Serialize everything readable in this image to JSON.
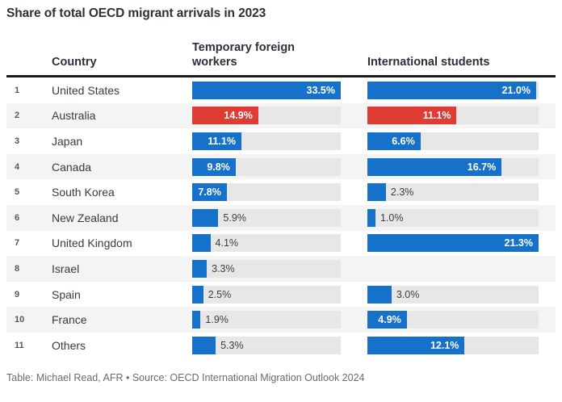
{
  "title": "Share of total OECD migrant arrivals in 2023",
  "columns": {
    "country": "Country",
    "workers": "Temporary foreign\nworkers",
    "students": "International students"
  },
  "footer": "Table: Michael Read, AFR • Source: OECD International Migration Outlook 2024",
  "colors": {
    "bar_blue": "#1571c9",
    "bar_red": "#df3c33",
    "track": "#e7e7e7",
    "stripe": "#f4f4f4",
    "rule": "#1a1a22",
    "title_text": "#2c303a",
    "footer_text": "#6b6b6b"
  },
  "chart_data": {
    "type": "bar",
    "orientation": "horizontal",
    "title": "Share of total OECD migrant arrivals in 2023",
    "ranks": [
      1,
      2,
      3,
      4,
      5,
      6,
      7,
      8,
      9,
      10,
      11
    ],
    "categories": [
      "United States",
      "Australia",
      "Japan",
      "Canada",
      "South Korea",
      "New Zealand",
      "United Kingdom",
      "Israel",
      "Spain",
      "France",
      "Others"
    ],
    "series": [
      {
        "name": "Temporary foreign workers",
        "axis_max": 33.5,
        "values": [
          33.5,
          14.9,
          11.1,
          9.8,
          7.8,
          5.9,
          4.1,
          3.3,
          2.5,
          1.9,
          5.3
        ]
      },
      {
        "name": "International students",
        "axis_max": 21.3,
        "values": [
          21.0,
          11.1,
          6.6,
          16.7,
          2.3,
          1.0,
          21.3,
          null,
          3.0,
          4.9,
          12.1
        ]
      }
    ],
    "value_suffix": "%",
    "value_decimals": 1,
    "highlight_category": "Australia",
    "legend": "none",
    "grid": "off"
  }
}
